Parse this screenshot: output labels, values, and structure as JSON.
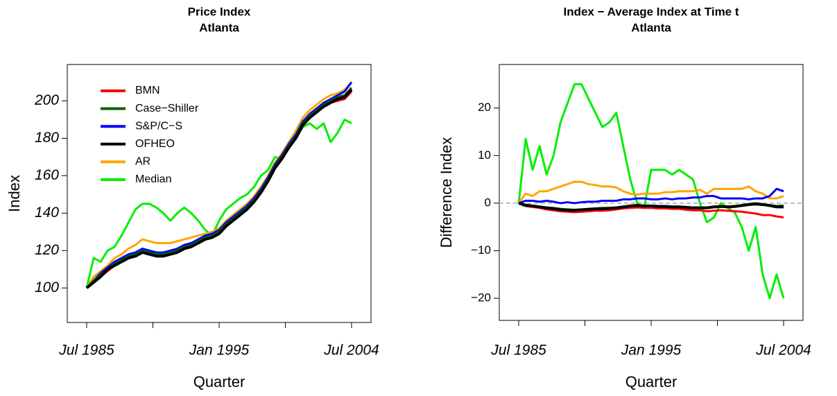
{
  "chart_data": [
    {
      "type": "line",
      "title": "Price Index",
      "subtitle": "Atlanta",
      "x_label": "Quarter",
      "y_label": "Index",
      "x": [
        1985.5,
        1986,
        1986.5,
        1987,
        1987.5,
        1988,
        1988.5,
        1989,
        1989.5,
        1990,
        1990.5,
        1991,
        1991.5,
        1992,
        1992.5,
        1993,
        1993.5,
        1994,
        1994.5,
        1995,
        1995.5,
        1996,
        1996.5,
        1997,
        1997.5,
        1998,
        1998.5,
        1999,
        1999.5,
        2000,
        2000.5,
        2001,
        2001.5,
        2002,
        2002.5,
        2003,
        2003.5,
        2004,
        2004.5
      ],
      "xlim": [
        1985.5,
        2004.5
      ],
      "xticks": [
        {
          "value": 1985.5,
          "label": "Jul 1985"
        },
        {
          "value": 1990.25,
          "label": null
        },
        {
          "value": 1995,
          "label": "Jan 1995"
        },
        {
          "value": 1999.75,
          "label": null
        },
        {
          "value": 2004.5,
          "label": "Jul 2004"
        }
      ],
      "ylim": [
        86,
        215
      ],
      "yticks": [
        100,
        120,
        140,
        160,
        180,
        200
      ],
      "legend": "topleft",
      "series": [
        {
          "name": "BMN",
          "color": "#ff0000",
          "values": [
            100,
            103,
            106,
            109,
            112,
            114,
            116,
            117,
            119,
            118,
            117,
            117,
            118,
            119,
            121,
            122,
            124,
            126,
            127,
            129,
            133,
            136,
            139,
            142,
            146,
            151,
            157,
            164,
            169,
            175,
            180,
            187,
            191,
            194,
            197,
            199,
            200,
            201,
            205
          ]
        },
        {
          "name": "Case−Shiller",
          "color": "#006400",
          "values": [
            100,
            104,
            107,
            110,
            113,
            115,
            117,
            118,
            120,
            119,
            118,
            118,
            119,
            120,
            122,
            123,
            125,
            127,
            128,
            130,
            134,
            137,
            140,
            143,
            147,
            152,
            158,
            165,
            170,
            176,
            181,
            188,
            192,
            195,
            198,
            200,
            202,
            203,
            207
          ]
        },
        {
          "name": "S&P/C−S",
          "color": "#0000ff",
          "values": [
            100,
            104,
            108,
            111,
            114,
            116,
            118,
            119,
            121,
            120,
            119,
            119,
            120,
            121,
            123,
            124,
            126,
            128,
            129,
            131,
            135,
            138,
            141,
            144,
            148,
            153,
            159,
            166,
            171,
            177,
            182,
            189,
            193,
            196,
            199,
            201,
            203,
            205,
            210
          ]
        },
        {
          "name": "OFHEO",
          "color": "#000000",
          "values": [
            100,
            103,
            106,
            110,
            112,
            114,
            116,
            117,
            119,
            118,
            117,
            117,
            118,
            119,
            121,
            122,
            124,
            126,
            127,
            129,
            133,
            136,
            139,
            142,
            146,
            151,
            157,
            164,
            169,
            175,
            180,
            187,
            191,
            194,
            197,
            199,
            201,
            202,
            206
          ]
        },
        {
          "name": "AR",
          "color": "#ffa500",
          "values": [
            100,
            106,
            109,
            112,
            116,
            118,
            121,
            123,
            126,
            125,
            124,
            124,
            124,
            125,
            126,
            127,
            128,
            129,
            130,
            132,
            136,
            139,
            142,
            145,
            149,
            154,
            160,
            167,
            172,
            178,
            184,
            191,
            195,
            198,
            201,
            203,
            204,
            206,
            210
          ]
        },
        {
          "name": "Median",
          "color": "#00ee00",
          "values": [
            100,
            116,
            114,
            120,
            122,
            128,
            135,
            142,
            145,
            145,
            143,
            140,
            136,
            140,
            143,
            140,
            136,
            131,
            128,
            136,
            142,
            145,
            148,
            150,
            154,
            160,
            163,
            170,
            169,
            175,
            180,
            186,
            188,
            185,
            188,
            178,
            183,
            190,
            188
          ]
        }
      ]
    },
    {
      "type": "line",
      "title": "Index − Average Index at Time t",
      "subtitle": "Atlanta",
      "x_label": "Quarter",
      "y_label": "Difference Index",
      "x": [
        1985.5,
        1986,
        1986.5,
        1987,
        1987.5,
        1988,
        1988.5,
        1989,
        1989.5,
        1990,
        1990.5,
        1991,
        1991.5,
        1992,
        1992.5,
        1993,
        1993.5,
        1994,
        1994.5,
        1995,
        1995.5,
        1996,
        1996.5,
        1997,
        1997.5,
        1998,
        1998.5,
        1999,
        1999.5,
        2000,
        2000.5,
        2001,
        2001.5,
        2002,
        2002.5,
        2003,
        2003.5,
        2004,
        2004.5
      ],
      "xlim": [
        1985.5,
        2004.5
      ],
      "xticks": [
        {
          "value": 1985.5,
          "label": "Jul 1985"
        },
        {
          "value": 1990.25,
          "label": null
        },
        {
          "value": 1995,
          "label": "Jan 1995"
        },
        {
          "value": 1999.75,
          "label": null
        },
        {
          "value": 2004.5,
          "label": "Jul 2004"
        }
      ],
      "ylim": [
        -22.9,
        27.4
      ],
      "yticks": [
        {
          "value": -20,
          "label": "−20"
        },
        {
          "value": -10,
          "label": "−10"
        },
        0,
        10,
        20
      ],
      "hline": 0,
      "series": [
        {
          "name": "BMN",
          "color": "#ff0000",
          "values": [
            0,
            -0.6,
            -0.8,
            -1,
            -1.3,
            -1.5,
            -1.7,
            -1.8,
            -1.9,
            -1.8,
            -1.7,
            -1.6,
            -1.6,
            -1.5,
            -1.3,
            -1.1,
            -1,
            -0.9,
            -1,
            -1,
            -1.1,
            -1.1,
            -1.2,
            -1.2,
            -1.4,
            -1.5,
            -1.5,
            -1.7,
            -1.6,
            -1.5,
            -1.6,
            -1.7,
            -1.8,
            -2,
            -2.2,
            -2.5,
            -2.5,
            -2.8,
            -3
          ]
        },
        {
          "name": "Case−Shiller",
          "color": "#006400",
          "values": [
            0,
            -0.3,
            -0.5,
            -0.7,
            -0.9,
            -1,
            -1.2,
            -1.3,
            -1.4,
            -1.3,
            -1.2,
            -1.1,
            -1,
            -1,
            -0.9,
            -0.7,
            -0.5,
            -0.4,
            -0.5,
            -0.5,
            -0.6,
            -0.6,
            -0.7,
            -0.7,
            -0.8,
            -0.9,
            -0.9,
            -0.9,
            -0.7,
            -0.6,
            -0.7,
            -0.6,
            -0.4,
            -0.2,
            0,
            -0.2,
            -0.4,
            -0.6,
            -0.5
          ]
        },
        {
          "name": "S&P/C−S",
          "color": "#0000ff",
          "values": [
            0,
            0.5,
            0.5,
            0.3,
            0.5,
            0.3,
            0,
            0.2,
            0,
            0.2,
            0.3,
            0.3,
            0.5,
            0.5,
            0.5,
            0.8,
            0.8,
            1,
            1,
            0.8,
            0.8,
            1,
            0.8,
            1,
            1,
            1.2,
            1.2,
            1.5,
            1.5,
            1,
            1,
            1,
            1,
            0.8,
            1,
            1,
            1.5,
            3,
            2.5
          ]
        },
        {
          "name": "OFHEO",
          "color": "#000000",
          "values": [
            0,
            -0.5,
            -0.6,
            -0.8,
            -1,
            -1.2,
            -1.4,
            -1.5,
            -1.5,
            -1.4,
            -1.3,
            -1.2,
            -1.2,
            -1.1,
            -1,
            -0.8,
            -0.6,
            -0.5,
            -0.6,
            -0.6,
            -0.7,
            -0.7,
            -0.8,
            -0.8,
            -0.9,
            -1,
            -1,
            -1,
            -0.8,
            -0.7,
            -0.8,
            -0.7,
            -0.5,
            -0.3,
            -0.2,
            -0.3,
            -0.5,
            -0.8,
            -0.8
          ]
        },
        {
          "name": "AR",
          "color": "#ffa500",
          "values": [
            0,
            2,
            1.5,
            2.5,
            2.5,
            3,
            3.5,
            4,
            4.5,
            4.5,
            4,
            3.8,
            3.5,
            3.5,
            3.3,
            2.5,
            2,
            1.8,
            2,
            2,
            2,
            2.3,
            2.3,
            2.5,
            2.5,
            2.5,
            2.8,
            2,
            3,
            3,
            3,
            3,
            3,
            3.5,
            2.5,
            2,
            1,
            1,
            1.5
          ]
        },
        {
          "name": "Median",
          "color": "#00ee00",
          "values": [
            0,
            13.5,
            7,
            12,
            6,
            10,
            17,
            21,
            25,
            25,
            22,
            19,
            16,
            17,
            19,
            12,
            5,
            0,
            -1,
            7,
            7,
            7,
            6,
            7,
            6,
            5,
            0,
            -4,
            -3,
            0,
            -1,
            -2,
            -5,
            -10,
            -5,
            -15,
            -20,
            -15,
            -20
          ]
        }
      ]
    }
  ]
}
